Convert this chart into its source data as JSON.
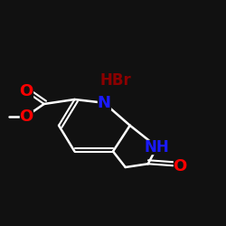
{
  "background_color": "#111111",
  "line_color": "#ffffff",
  "atom_colors": {
    "N": "#1a1aff",
    "O": "#ff0000",
    "HBr": "#8b0000",
    "C": "#ffffff"
  },
  "font_size_N": 13,
  "font_size_NH": 12,
  "font_size_O": 13,
  "font_size_hbr": 12,
  "figure_bg": "#111111"
}
